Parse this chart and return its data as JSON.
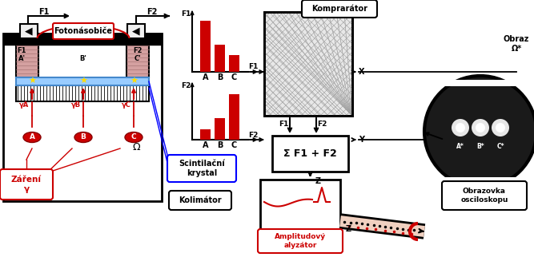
{
  "bg_color": "#ffffff",
  "bar_F1": [
    0.85,
    0.45,
    0.28
  ],
  "bar_F2": [
    0.18,
    0.38,
    0.82
  ],
  "bar_cats": [
    "A",
    "B",
    "C"
  ],
  "bar_color": "#cc0000",
  "text_fotonasobic": "Fotonásobiče",
  "text_zareni": "Záření\nγ",
  "text_scintilacni": "Scintilační\nkrystal",
  "text_kolimator": "Kolimátor",
  "text_komprarator": "Komprarátor",
  "text_amplitudovy": "Amplitudový\nalyzátor",
  "text_obrazovka": "Obrazovka\nosciloskopu",
  "text_obraz": "Obraz\nΩ*",
  "text_sigma": "Σ F1 + F2"
}
